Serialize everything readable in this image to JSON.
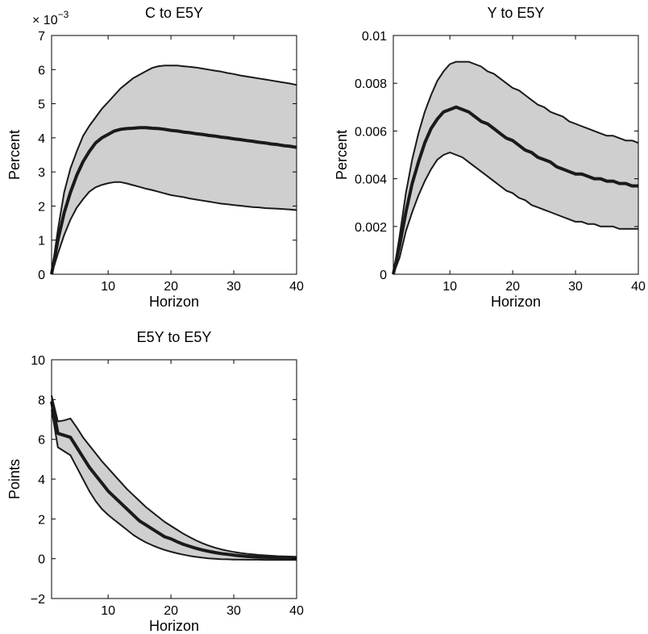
{
  "chart_data": [
    {
      "type": "area",
      "title": "C to E5Y",
      "xlabel": "Horizon",
      "ylabel": "Percent",
      "exponent_label": "× 10",
      "exponent_power": "−3",
      "xlim": [
        1,
        40
      ],
      "ylim": [
        0,
        7
      ],
      "xticks": [
        10,
        20,
        30,
        40
      ],
      "yticks": [
        0,
        1,
        2,
        3,
        4,
        5,
        6,
        7
      ],
      "ytick_labels": [
        "0",
        "1",
        "2",
        "3",
        "4",
        "5",
        "6",
        "7"
      ],
      "x": [
        1,
        2,
        3,
        4,
        5,
        6,
        7,
        8,
        9,
        10,
        11,
        12,
        13,
        14,
        15,
        16,
        17,
        18,
        19,
        20,
        21,
        22,
        23,
        24,
        25,
        26,
        27,
        28,
        29,
        30,
        31,
        32,
        33,
        34,
        35,
        36,
        37,
        38,
        39,
        40
      ],
      "series": [
        {
          "values": [
            0,
            1.0,
            1.8,
            2.4,
            2.9,
            3.3,
            3.6,
            3.85,
            4.0,
            4.1,
            4.2,
            4.25,
            4.27,
            4.28,
            4.3,
            4.3,
            4.28,
            4.27,
            4.25,
            4.22,
            4.2,
            4.17,
            4.15,
            4.12,
            4.1,
            4.07,
            4.05,
            4.02,
            4.0,
            3.97,
            3.95,
            3.92,
            3.9,
            3.87,
            3.85,
            3.82,
            3.8,
            3.77,
            3.75,
            3.72
          ]
        },
        {
          "values": [
            0,
            1.3,
            2.4,
            3.1,
            3.6,
            4.05,
            4.35,
            4.6,
            4.85,
            5.05,
            5.25,
            5.45,
            5.6,
            5.75,
            5.85,
            5.95,
            6.05,
            6.1,
            6.12,
            6.12,
            6.12,
            6.1,
            6.08,
            6.06,
            6.03,
            6.0,
            5.97,
            5.94,
            5.9,
            5.87,
            5.83,
            5.8,
            5.77,
            5.74,
            5.71,
            5.68,
            5.65,
            5.62,
            5.59,
            5.55
          ]
        },
        {
          "values": [
            0,
            0.6,
            1.15,
            1.6,
            1.95,
            2.2,
            2.42,
            2.55,
            2.62,
            2.67,
            2.7,
            2.7,
            2.66,
            2.61,
            2.56,
            2.51,
            2.47,
            2.42,
            2.37,
            2.32,
            2.29,
            2.26,
            2.22,
            2.19,
            2.16,
            2.13,
            2.1,
            2.07,
            2.05,
            2.03,
            2.01,
            1.99,
            1.97,
            1.96,
            1.94,
            1.93,
            1.92,
            1.91,
            1.9,
            1.88
          ]
        }
      ]
    },
    {
      "type": "area",
      "title": "Y to E5Y",
      "xlabel": "Horizon",
      "ylabel": "Percent",
      "xlim": [
        1,
        40
      ],
      "ylim": [
        0,
        0.01
      ],
      "xticks": [
        10,
        20,
        30,
        40
      ],
      "yticks": [
        0,
        0.002,
        0.004,
        0.006,
        0.008,
        0.01
      ],
      "ytick_labels": [
        "0",
        "0.002",
        "0.004",
        "0.006",
        "0.008",
        "0.01"
      ],
      "x": [
        1,
        2,
        3,
        4,
        5,
        6,
        7,
        8,
        9,
        10,
        11,
        12,
        13,
        14,
        15,
        16,
        17,
        18,
        19,
        20,
        21,
        22,
        23,
        24,
        25,
        26,
        27,
        28,
        29,
        30,
        31,
        32,
        33,
        34,
        35,
        36,
        37,
        38,
        39,
        40
      ],
      "series": [
        {
          "values": [
            0,
            0.0012,
            0.0026,
            0.0038,
            0.0047,
            0.0055,
            0.0061,
            0.0065,
            0.0068,
            0.0069,
            0.007,
            0.0069,
            0.0068,
            0.0066,
            0.0064,
            0.0063,
            0.0061,
            0.0059,
            0.0057,
            0.0056,
            0.0054,
            0.0052,
            0.0051,
            0.0049,
            0.0048,
            0.0047,
            0.0045,
            0.0044,
            0.0043,
            0.0042,
            0.0042,
            0.0041,
            0.004,
            0.004,
            0.0039,
            0.0039,
            0.0038,
            0.0038,
            0.0037,
            0.0037
          ]
        },
        {
          "values": [
            0,
            0.0016,
            0.0034,
            0.0048,
            0.0059,
            0.0068,
            0.0075,
            0.0081,
            0.0085,
            0.0088,
            0.0089,
            0.0089,
            0.0089,
            0.0088,
            0.0087,
            0.0085,
            0.0084,
            0.0082,
            0.008,
            0.0078,
            0.0077,
            0.0075,
            0.0073,
            0.0071,
            0.007,
            0.0068,
            0.0067,
            0.0066,
            0.0064,
            0.0063,
            0.0062,
            0.0061,
            0.006,
            0.0059,
            0.0058,
            0.0058,
            0.0057,
            0.0056,
            0.0056,
            0.0055
          ]
        },
        {
          "values": [
            0,
            0.0007,
            0.0018,
            0.0026,
            0.0033,
            0.0039,
            0.0044,
            0.0048,
            0.005,
            0.0051,
            0.005,
            0.0049,
            0.0047,
            0.0045,
            0.0043,
            0.0041,
            0.0039,
            0.0037,
            0.0035,
            0.0034,
            0.0032,
            0.0031,
            0.0029,
            0.0028,
            0.0027,
            0.0026,
            0.0025,
            0.0024,
            0.0023,
            0.0022,
            0.0022,
            0.0021,
            0.0021,
            0.002,
            0.002,
            0.002,
            0.0019,
            0.0019,
            0.0019,
            0.0019
          ]
        }
      ]
    },
    {
      "type": "area",
      "title": "E5Y to E5Y",
      "xlabel": "Horizon",
      "ylabel": "Points",
      "xlim": [
        1,
        40
      ],
      "ylim": [
        -2,
        10
      ],
      "xticks": [
        10,
        20,
        30,
        40
      ],
      "yticks": [
        -2,
        0,
        2,
        4,
        6,
        8,
        10
      ],
      "ytick_labels": [
        "−2",
        "0",
        "2",
        "4",
        "6",
        "8",
        "10"
      ],
      "x": [
        1,
        2,
        3,
        4,
        5,
        6,
        7,
        8,
        9,
        10,
        11,
        12,
        13,
        14,
        15,
        16,
        17,
        18,
        19,
        20,
        21,
        22,
        23,
        24,
        25,
        26,
        27,
        28,
        29,
        30,
        31,
        32,
        33,
        34,
        35,
        36,
        37,
        38,
        39,
        40
      ],
      "series": [
        {
          "values": [
            7.9,
            6.3,
            6.2,
            6.1,
            5.6,
            5.1,
            4.6,
            4.2,
            3.8,
            3.4,
            3.1,
            2.8,
            2.5,
            2.2,
            1.9,
            1.7,
            1.5,
            1.3,
            1.1,
            1.0,
            0.85,
            0.72,
            0.62,
            0.52,
            0.44,
            0.37,
            0.31,
            0.26,
            0.22,
            0.18,
            0.15,
            0.12,
            0.1,
            0.08,
            0.07,
            0.06,
            0.05,
            0.04,
            0.03,
            0.03
          ]
        },
        {
          "values": [
            8.2,
            6.9,
            6.95,
            7.05,
            6.6,
            6.1,
            5.7,
            5.3,
            4.9,
            4.55,
            4.2,
            3.85,
            3.5,
            3.2,
            2.9,
            2.6,
            2.35,
            2.1,
            1.85,
            1.65,
            1.45,
            1.25,
            1.08,
            0.92,
            0.78,
            0.66,
            0.56,
            0.47,
            0.4,
            0.34,
            0.29,
            0.25,
            0.22,
            0.19,
            0.17,
            0.15,
            0.13,
            0.12,
            0.11,
            0.1
          ]
        },
        {
          "values": [
            7.5,
            5.6,
            5.4,
            5.2,
            4.6,
            4.0,
            3.4,
            2.9,
            2.5,
            2.2,
            1.95,
            1.7,
            1.45,
            1.2,
            1.0,
            0.82,
            0.68,
            0.55,
            0.44,
            0.35,
            0.27,
            0.2,
            0.14,
            0.09,
            0.05,
            0.02,
            0.0,
            -0.02,
            -0.03,
            -0.04,
            -0.04,
            -0.05,
            -0.05,
            -0.05,
            -0.06,
            -0.06,
            -0.06,
            -0.06,
            -0.06,
            -0.06
          ]
        }
      ]
    }
  ]
}
